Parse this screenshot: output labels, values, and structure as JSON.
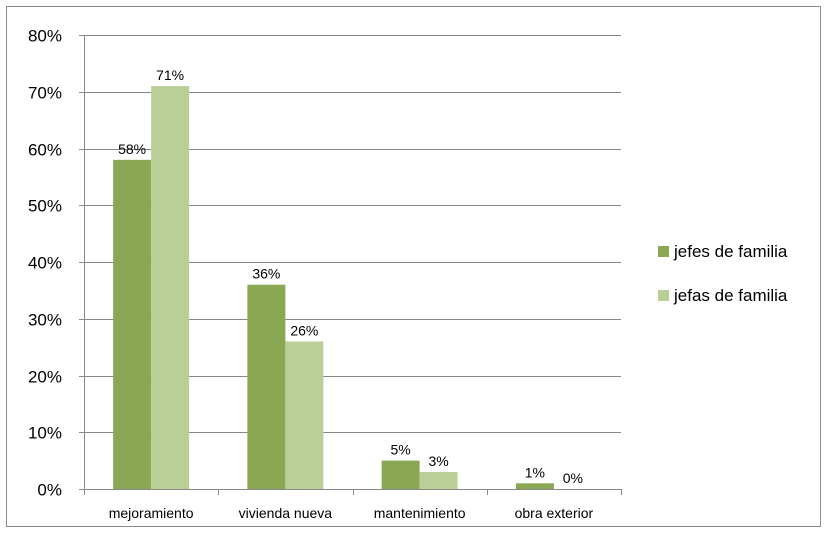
{
  "chart_data": {
    "type": "bar",
    "categories": [
      "mejoramiento",
      "vivienda nueva",
      "mantenimiento",
      "obra exterior"
    ],
    "series": [
      {
        "name": "jefes de familia",
        "values": [
          58,
          36,
          5,
          1
        ],
        "labels": [
          "58%",
          "36%",
          "5%",
          "1%"
        ],
        "color": "#8aa853"
      },
      {
        "name": "jefas de familia",
        "values": [
          71,
          26,
          3,
          0
        ],
        "labels": [
          "71%",
          "26%",
          "3%",
          "0%"
        ],
        "color": "#bacf97"
      }
    ],
    "ylim": [
      0,
      80
    ],
    "yticks": [
      0,
      10,
      20,
      30,
      40,
      50,
      60,
      70,
      80
    ],
    "ytick_labels": [
      "0%",
      "10%",
      "20%",
      "30%",
      "40%",
      "50%",
      "60%",
      "70%",
      "80%"
    ],
    "grid": true,
    "legend_position": "right",
    "gridline_color": "#888888",
    "axis_color": "#888888"
  }
}
